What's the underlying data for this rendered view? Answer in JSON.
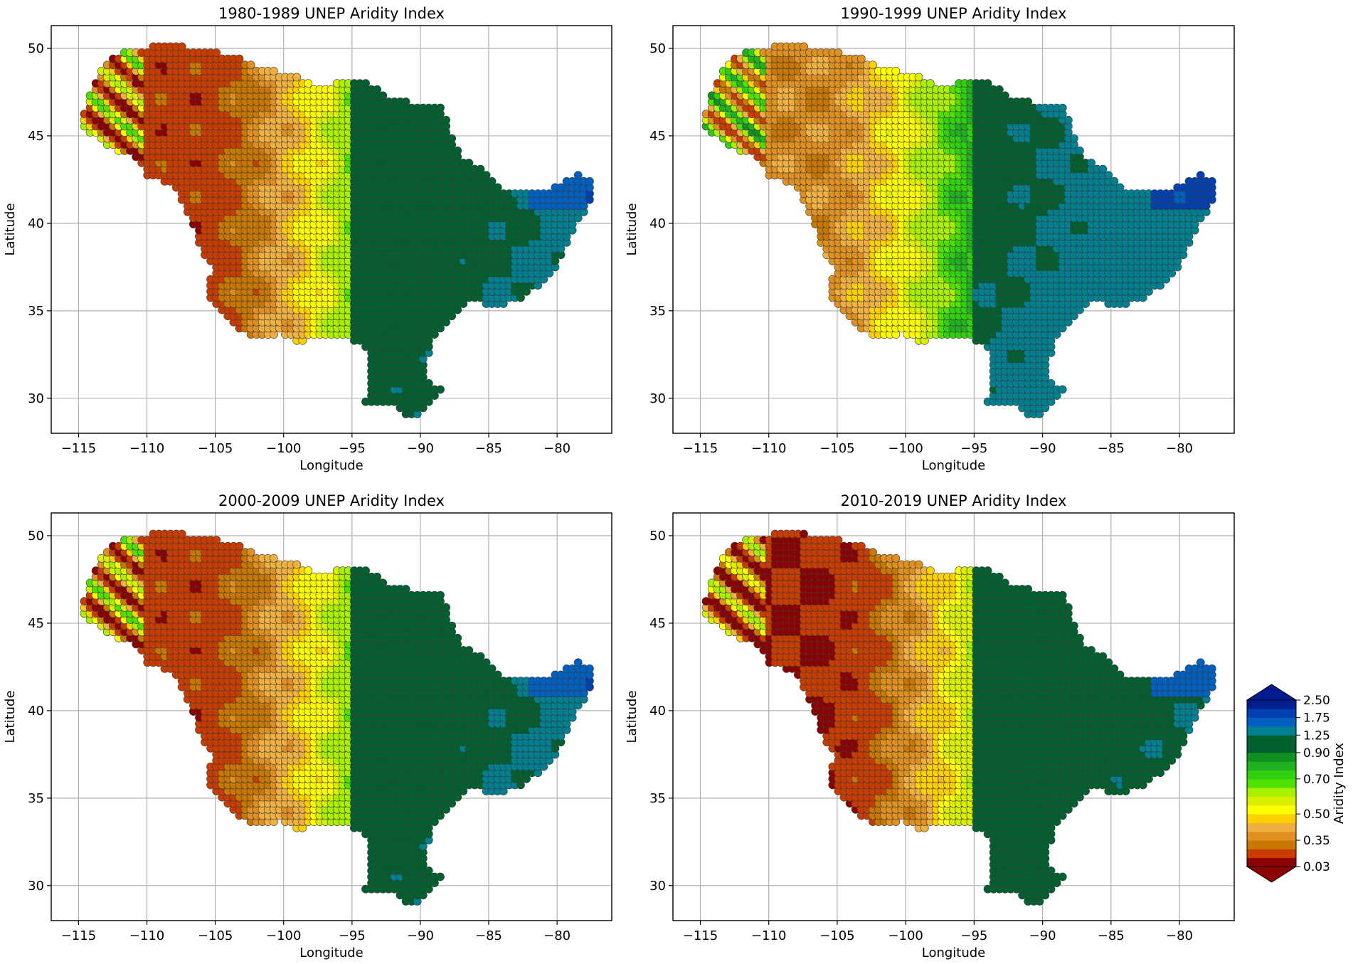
{
  "chart_data": [
    {
      "type": "scatter",
      "title": "1980-1989  UNEP Aridity Index",
      "xlabel": "Longitude",
      "ylabel": "Latitude",
      "xlim": [
        -117,
        -76
      ],
      "ylim": [
        28,
        51.3
      ],
      "xticks": [
        -115,
        -110,
        -105,
        -100,
        -95,
        -90,
        -85,
        -80
      ],
      "xtick_labels": [
        "−115",
        "−110",
        "−105",
        "−100",
        "−95",
        "−90",
        "−85",
        "−80"
      ],
      "yticks": [
        30,
        35,
        40,
        45,
        50
      ],
      "ytick_labels": [
        "30",
        "35",
        "40",
        "45",
        "50"
      ],
      "grid": true,
      "wet_shift": 0.0
    },
    {
      "type": "scatter",
      "title": "1990-1999  UNEP Aridity Index",
      "xlabel": "Longitude",
      "ylabel": "Latitude",
      "xlim": [
        -117,
        -76
      ],
      "ylim": [
        28,
        51.3
      ],
      "xticks": [
        -115,
        -110,
        -105,
        -100,
        -95,
        -90,
        -85,
        -80
      ],
      "xtick_labels": [
        "−115",
        "−110",
        "−105",
        "−100",
        "−95",
        "−90",
        "−85",
        "−80"
      ],
      "yticks": [
        30,
        35,
        40,
        45,
        50
      ],
      "ytick_labels": [
        "30",
        "35",
        "40",
        "45",
        "50"
      ],
      "grid": true,
      "wet_shift": 0.12
    },
    {
      "type": "scatter",
      "title": "2000-2009  UNEP Aridity Index",
      "xlabel": "Longitude",
      "ylabel": "Latitude",
      "xlim": [
        -117,
        -76
      ],
      "ylim": [
        28,
        51.3
      ],
      "xticks": [
        -115,
        -110,
        -105,
        -100,
        -95,
        -90,
        -85,
        -80
      ],
      "xtick_labels": [
        "−115",
        "−110",
        "−105",
        "−100",
        "−95",
        "−90",
        "−85",
        "−80"
      ],
      "yticks": [
        30,
        35,
        40,
        45,
        50
      ],
      "ytick_labels": [
        "30",
        "35",
        "40",
        "45",
        "50"
      ],
      "grid": true,
      "wet_shift": 0.0
    },
    {
      "type": "scatter",
      "title": "2010-2019  UNEP Aridity Index",
      "xlabel": "Longitude",
      "ylabel": "Latitude",
      "xlim": [
        -117,
        -76
      ],
      "ylim": [
        28,
        51.3
      ],
      "xticks": [
        -115,
        -110,
        -105,
        -100,
        -95,
        -90,
        -85,
        -80
      ],
      "xtick_labels": [
        "−115",
        "−110",
        "−105",
        "−100",
        "−95",
        "−90",
        "−85",
        "−80"
      ],
      "yticks": [
        30,
        35,
        40,
        45,
        50
      ],
      "ytick_labels": [
        "30",
        "35",
        "40",
        "45",
        "50"
      ],
      "grid": true,
      "wet_shift": -0.05
    }
  ],
  "colorbar": {
    "label": "Aridity Index",
    "levels": [
      0.03,
      0.2,
      0.3,
      0.35,
      0.4,
      0.45,
      0.5,
      0.55,
      0.6,
      0.65,
      0.7,
      0.75,
      0.8,
      0.9,
      1.0,
      1.25,
      1.5,
      1.75,
      2.0,
      2.5
    ],
    "tick_values": [
      0.03,
      0.35,
      0.5,
      0.7,
      0.9,
      1.25,
      1.75,
      2.5
    ],
    "tick_labels": [
      "0.03",
      "0.35",
      "0.50",
      "0.70",
      "0.90",
      "1.25",
      "1.75",
      "2.50"
    ],
    "colors": [
      "#8b0000",
      "#c83c00",
      "#c87800",
      "#e09020",
      "#f0b040",
      "#ffd000",
      "#ffff00",
      "#d8f000",
      "#a8f000",
      "#50e000",
      "#30d010",
      "#20b020",
      "#109020",
      "#006030",
      "#006030",
      "#008090",
      "#0060c0",
      "#0040b0",
      "#002090"
    ],
    "under_color": "#8b0000",
    "over_color": "#001a90",
    "extend": "both"
  }
}
